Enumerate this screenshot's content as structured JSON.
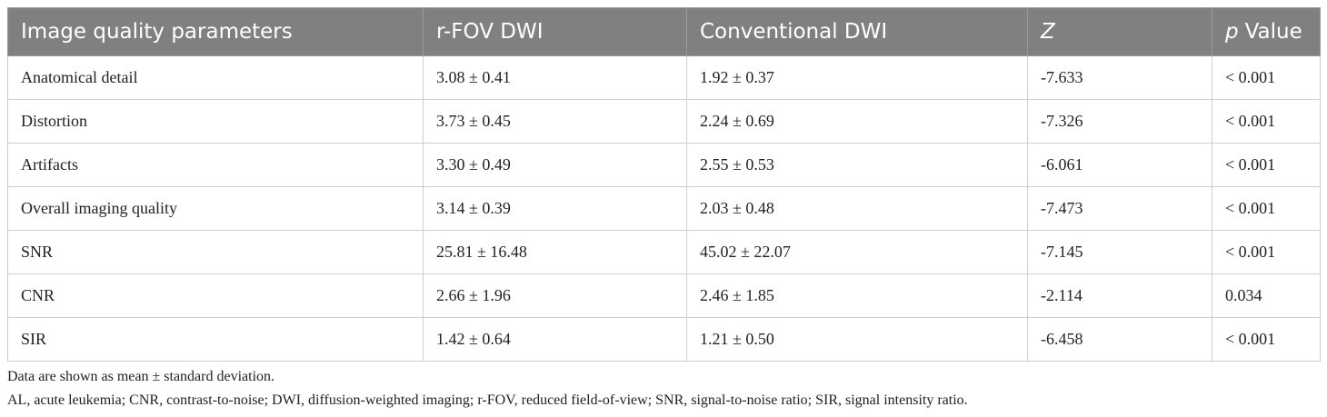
{
  "table": {
    "header": [
      "Image quality parameters",
      "r-FOV DWI",
      "Conventional DWI",
      "Z",
      [
        "p",
        "Value"
      ]
    ],
    "rows": [
      [
        "Anatomical detail",
        "3.08 ± 0.41",
        "1.92 ± 0.37",
        "-7.633",
        "< 0.001"
      ],
      [
        "Distortion",
        "3.73 ± 0.45",
        "2.24 ± 0.69",
        "-7.326",
        "< 0.001"
      ],
      [
        "Artifacts",
        "3.30 ± 0.49",
        "2.55 ± 0.53",
        "-6.061",
        "< 0.001"
      ],
      [
        "Overall imaging quality",
        "3.14 ± 0.39",
        "2.03 ± 0.48",
        "-7.473",
        "< 0.001"
      ],
      [
        "SNR",
        "25.81 ± 16.48",
        "45.02 ± 22.07",
        "-7.145",
        "< 0.001"
      ],
      [
        "CNR",
        "2.66 ± 1.96",
        "2.46 ± 1.85",
        "-2.114",
        "0.034"
      ],
      [
        "SIR",
        "1.42 ± 0.64",
        "1.21 ± 0.50",
        "-6.458",
        "< 0.001"
      ]
    ]
  },
  "footnotes": [
    "Data are shown as mean ± standard deviation.",
    "AL, acute leukemia; CNR, contrast-to-noise; DWI, diffusion-weighted imaging; r-FOV, reduced field-of-view; SNR, signal-to-noise ratio; SIR, signal intensity ratio."
  ]
}
